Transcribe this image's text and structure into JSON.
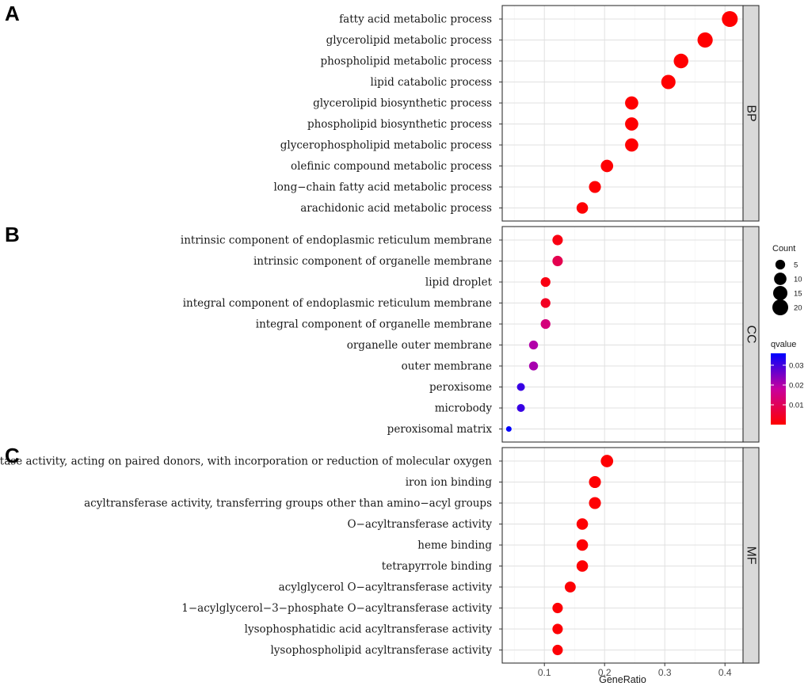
{
  "chart_data": {
    "type": "scatter",
    "xlabel": "GeneRatio",
    "xlim": [
      0.03,
      0.43
    ],
    "x_ticks": [
      0.1,
      0.2,
      0.3,
      0.4
    ],
    "grid": true,
    "legend_position": "right",
    "size_legend": {
      "title": "Count",
      "values": [
        5,
        10,
        15,
        20
      ]
    },
    "color_legend": {
      "title": "qvalue",
      "ticks": [
        0.01,
        0.02,
        0.03
      ],
      "range": [
        0.0,
        0.036
      ],
      "low_color": "#ff0000",
      "high_color": "#0000ff"
    },
    "panels": [
      {
        "letter": "A",
        "strip": "BP",
        "terms": [
          {
            "label": "fatty acid metabolic process",
            "gene_ratio": 0.408,
            "count": 20,
            "qvalue": 0.0001
          },
          {
            "label": "glycerolipid metabolic process",
            "gene_ratio": 0.367,
            "count": 18,
            "qvalue": 0.0001
          },
          {
            "label": "phospholipid metabolic process",
            "gene_ratio": 0.327,
            "count": 16,
            "qvalue": 0.0001
          },
          {
            "label": "lipid catabolic process",
            "gene_ratio": 0.306,
            "count": 15,
            "qvalue": 0.0001
          },
          {
            "label": "glycerolipid biosynthetic process",
            "gene_ratio": 0.245,
            "count": 12,
            "qvalue": 0.0001
          },
          {
            "label": "phospholipid biosynthetic process",
            "gene_ratio": 0.245,
            "count": 12,
            "qvalue": 0.0002
          },
          {
            "label": "glycerophospholipid metabolic process",
            "gene_ratio": 0.245,
            "count": 12,
            "qvalue": 0.0002
          },
          {
            "label": "olefinic compound metabolic process",
            "gene_ratio": 0.204,
            "count": 10,
            "qvalue": 0.0003
          },
          {
            "label": "long−chain fatty acid metabolic process",
            "gene_ratio": 0.184,
            "count": 9,
            "qvalue": 0.0003
          },
          {
            "label": "arachidonic acid metabolic process",
            "gene_ratio": 0.163,
            "count": 8,
            "qvalue": 0.0004
          }
        ]
      },
      {
        "letter": "B",
        "strip": "CC",
        "terms": [
          {
            "label": "intrinsic component of endoplasmic reticulum membrane",
            "gene_ratio": 0.122,
            "count": 6,
            "qvalue": 0.002
          },
          {
            "label": "intrinsic component of organelle membrane",
            "gene_ratio": 0.122,
            "count": 6,
            "qvalue": 0.009
          },
          {
            "label": "lipid droplet",
            "gene_ratio": 0.102,
            "count": 5,
            "qvalue": 0.002
          },
          {
            "label": "integral component of endoplasmic reticulum membrane",
            "gene_ratio": 0.102,
            "count": 5,
            "qvalue": 0.004
          },
          {
            "label": "integral component of organelle membrane",
            "gene_ratio": 0.102,
            "count": 5,
            "qvalue": 0.014
          },
          {
            "label": "organelle outer membrane",
            "gene_ratio": 0.082,
            "count": 4,
            "qvalue": 0.02
          },
          {
            "label": "outer membrane",
            "gene_ratio": 0.082,
            "count": 4,
            "qvalue": 0.021
          },
          {
            "label": "peroxisome",
            "gene_ratio": 0.061,
            "count": 3,
            "qvalue": 0.031
          },
          {
            "label": "microbody",
            "gene_ratio": 0.061,
            "count": 3,
            "qvalue": 0.031
          },
          {
            "label": "peroxisomal matrix",
            "gene_ratio": 0.041,
            "count": 2,
            "qvalue": 0.036
          }
        ]
      },
      {
        "letter": "C",
        "strip": "MF",
        "terms": [
          {
            "label": "oxidoreductase activity, acting on paired donors, with incorporation or reduction of molecular oxygen",
            "gene_ratio": 0.204,
            "count": 10,
            "qvalue": 0.0003
          },
          {
            "label": "iron ion binding",
            "gene_ratio": 0.184,
            "count": 9,
            "qvalue": 0.0003
          },
          {
            "label": "acyltransferase activity, transferring groups other than amino−acyl groups",
            "gene_ratio": 0.184,
            "count": 9,
            "qvalue": 0.0004
          },
          {
            "label": "O−acyltransferase activity",
            "gene_ratio": 0.163,
            "count": 8,
            "qvalue": 0.0004
          },
          {
            "label": "heme binding",
            "gene_ratio": 0.163,
            "count": 8,
            "qvalue": 0.0005
          },
          {
            "label": "tetrapyrrole binding",
            "gene_ratio": 0.163,
            "count": 8,
            "qvalue": 0.0005
          },
          {
            "label": "acylglycerol O−acyltransferase activity",
            "gene_ratio": 0.143,
            "count": 7,
            "qvalue": 0.0005
          },
          {
            "label": "1−acylglycerol−3−phosphate O−acyltransferase activity",
            "gene_ratio": 0.122,
            "count": 6,
            "qvalue": 0.0006
          },
          {
            "label": "lysophosphatidic acid acyltransferase activity",
            "gene_ratio": 0.122,
            "count": 6,
            "qvalue": 0.0006
          },
          {
            "label": "lysophospholipid acyltransferase activity",
            "gene_ratio": 0.122,
            "count": 6,
            "qvalue": 0.0007
          }
        ]
      }
    ]
  }
}
